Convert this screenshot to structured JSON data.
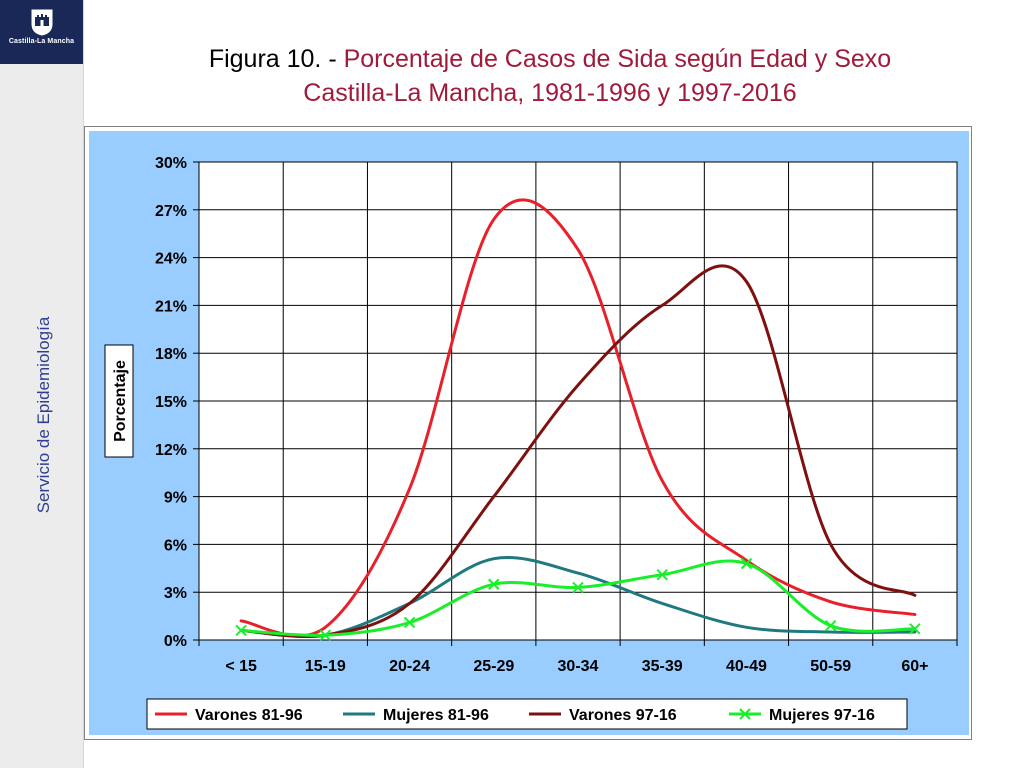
{
  "logo": {
    "text": "Castilla-La Mancha",
    "icon": "castle-crest-icon"
  },
  "sidebar": {
    "label": "Servicio de Epidemiología"
  },
  "title": {
    "line1_prefix": "Figura 10. - ",
    "line1_rest": "Porcentaje  de Casos de Sida según Edad y Sexo",
    "line2": "Castilla-La Mancha, 1981-1996 y 1997-2016"
  },
  "colors": {
    "plot_bg": "#ffffff",
    "area_bg": "#99ccff",
    "title_accent": "#a01a3b"
  },
  "chart_data": {
    "type": "line",
    "ylabel": "Porcentaje",
    "xlabel": "",
    "ylim": [
      0,
      30
    ],
    "yticks": [
      "0%",
      "3%",
      "6%",
      "9%",
      "12%",
      "15%",
      "18%",
      "21%",
      "24%",
      "27%",
      "30%"
    ],
    "categories": [
      "< 15",
      "15-19",
      "20-24",
      "25-29",
      "30-34",
      "35-39",
      "40-49",
      "50-59",
      "60+"
    ],
    "grid": true,
    "legend": "bottom",
    "series": [
      {
        "name": "Varones 81-96",
        "color": "#e8202a",
        "marker": "none",
        "values": [
          1.2,
          0.8,
          9.5,
          26.4,
          24.5,
          10.0,
          5.0,
          2.4,
          1.6
        ]
      },
      {
        "name": "Mujeres 81-96",
        "color": "#1f7a80",
        "marker": "none",
        "values": [
          0.6,
          0.3,
          2.3,
          5.1,
          4.2,
          2.3,
          0.8,
          0.5,
          0.5
        ]
      },
      {
        "name": "Varones 97-16",
        "color": "#7f1010",
        "marker": "none",
        "values": [
          0.6,
          0.3,
          2.3,
          9.0,
          16.0,
          21.0,
          22.5,
          6.0,
          2.8
        ]
      },
      {
        "name": "Mujeres 97-16",
        "color": "#1aee2a",
        "marker": "x",
        "values": [
          0.6,
          0.3,
          1.1,
          3.5,
          3.3,
          4.1,
          4.8,
          0.9,
          0.7
        ]
      }
    ]
  }
}
